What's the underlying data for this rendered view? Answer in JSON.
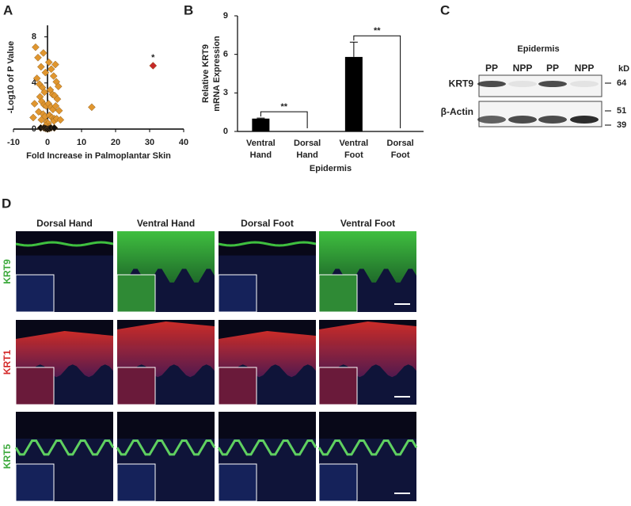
{
  "chart_data": [
    {
      "panel": "A",
      "type": "scatter",
      "ylabel": "-Log10 of P Value",
      "xlabel": "Fold Increase in Palmoplantar Skin",
      "xlim": [
        -10,
        40
      ],
      "xticks": [
        -10,
        0,
        10,
        20,
        30,
        40
      ],
      "ylim": [
        0,
        9
      ],
      "yticks": [
        0,
        4,
        8
      ],
      "series": [
        {
          "color": "#e0962f",
          "x": [
            -3.5,
            2.3,
            -2.8,
            -1.9,
            -1.2,
            -0.6,
            0.4,
            1.1,
            1.8,
            2.6,
            3.2,
            -3.1,
            -2.4,
            -1.5,
            -0.9,
            0.8,
            1.5,
            2.1,
            2.9,
            -2.2,
            -1.7,
            -1.0,
            -0.4,
            0.3,
            1.0,
            1.6,
            2.4,
            3.4,
            -3.8,
            -2.6,
            -1.3,
            -0.7,
            0.6,
            1.3,
            2.0,
            -1.8,
            -0.2,
            0.2,
            1.9,
            2.7,
            13,
            -4.2,
            3.8,
            -0.5,
            0.5
          ],
          "values": [
            7.1,
            5.6,
            6.2,
            5.4,
            6.6,
            4.9,
            5.8,
            5.2,
            4.6,
            4.1,
            3.7,
            4.4,
            3.9,
            3.6,
            3.2,
            3.4,
            3.0,
            2.9,
            2.6,
            2.8,
            2.4,
            2.1,
            2.0,
            2.2,
            1.9,
            1.7,
            2.0,
            1.6,
            2.2,
            1.5,
            1.3,
            1.1,
            1.2,
            1.0,
            0.9,
            0.8,
            0.6,
            0.5,
            0.7,
            0.9,
            1.9,
            1.0,
            0.8,
            0.3,
            0.2
          ]
        },
        {
          "color": "#111111",
          "x": [
            -2,
            -1,
            -0.5,
            0,
            0.5,
            1,
            2
          ],
          "values": [
            0.1,
            0.1,
            0.05,
            0,
            0.05,
            0.1,
            0.1
          ]
        },
        {
          "color": "#c62828",
          "x": [
            31
          ],
          "values": [
            5.5
          ],
          "label": "*"
        }
      ]
    },
    {
      "panel": "B",
      "type": "bar",
      "ylabel": [
        "Relative KRT9",
        "mRNA Expression"
      ],
      "xlabel": "Epidermis",
      "categories": [
        "Ventral Hand",
        "Dorsal Hand",
        "Ventral Foot",
        "Dorsal Foot"
      ],
      "values": [
        1,
        0,
        5.8,
        0
      ],
      "errors": [
        0.04,
        0,
        1.15,
        0
      ],
      "color": "#000000",
      "ylim": [
        0,
        9
      ],
      "yticks": [
        0,
        3,
        6,
        9
      ],
      "significance_labels": [
        "**",
        "**"
      ]
    }
  ],
  "blot": {
    "panel": "C",
    "title": "Epidermis",
    "lanes": [
      "PP",
      "NPP",
      "PP",
      "NPP"
    ],
    "rows": [
      "KRT9",
      "β-Actin"
    ],
    "unit": "kD",
    "markers": [
      "64",
      "51",
      "39"
    ]
  },
  "histology": {
    "panel": "D",
    "columns": [
      "Dorsal Hand",
      "Ventral Hand",
      "Dorsal Foot",
      "Ventral Foot"
    ],
    "rows": [
      {
        "label": "KRT9",
        "color": "#3aa83a"
      },
      {
        "label": "KRT1",
        "color": "#d42a2a"
      },
      {
        "label": "KRT5",
        "color": "#3aa83a"
      }
    ]
  }
}
